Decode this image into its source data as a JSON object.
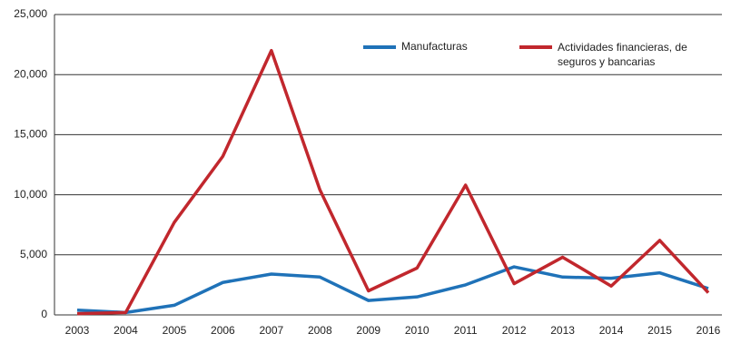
{
  "chart_data": {
    "type": "line",
    "categories": [
      "2003",
      "2004",
      "2005",
      "2006",
      "2007",
      "2008",
      "2009",
      "2010",
      "2011",
      "2012",
      "2013",
      "2014",
      "2015",
      "2016"
    ],
    "series": [
      {
        "name": "Manufacturas",
        "color": "#1f72b8",
        "values": [
          400,
          200,
          800,
          2700,
          3400,
          3150,
          1200,
          1500,
          2500,
          4000,
          3150,
          3050,
          3500,
          2200
        ]
      },
      {
        "name": "Actividades financieras, de seguros y bancarias",
        "color": "#c1272d",
        "values": [
          100,
          200,
          7700,
          13200,
          22000,
          10400,
          2000,
          3900,
          10800,
          2600,
          4800,
          2400,
          6200,
          1850
        ]
      }
    ],
    "ylim": [
      0,
      25000
    ],
    "yticks": [
      0,
      {
        "value": 5000,
        "label": "5,000"
      },
      {
        "value": 10000,
        "label": "10,000"
      },
      {
        "value": 15000,
        "label": "15,000"
      },
      {
        "value": 20000,
        "label": "20,000"
      },
      {
        "value": 25000,
        "label": "25,000"
      }
    ],
    "grid": true
  }
}
